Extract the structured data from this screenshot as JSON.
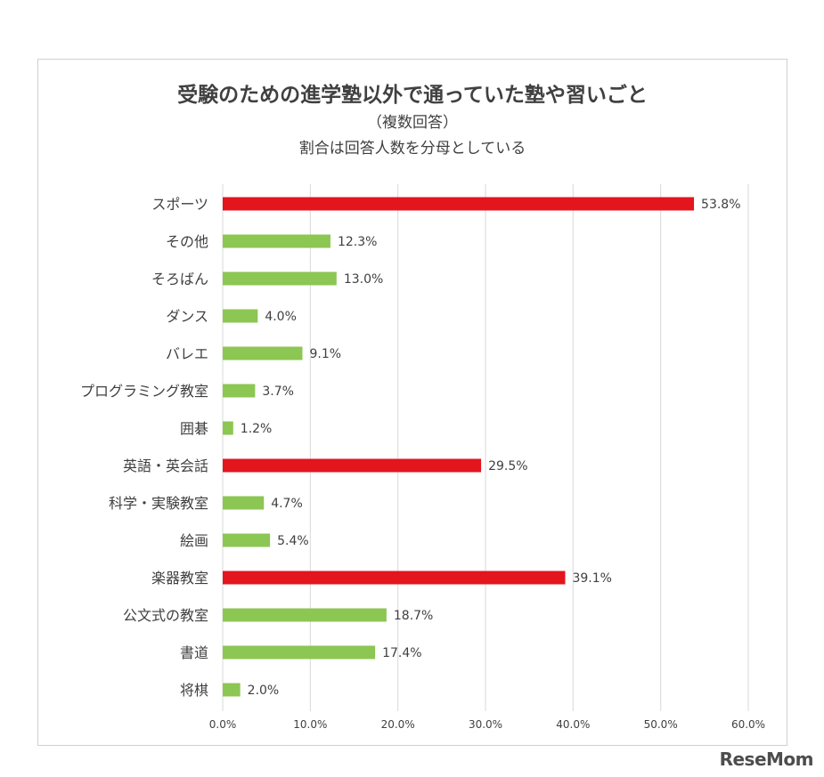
{
  "chart_data": {
    "type": "bar",
    "orientation": "horizontal",
    "title": "受験のための進学塾以外で通っていた塾や習いごと",
    "subtitle": "（複数回答）",
    "subtitle2": "割合は回答人数を分母としている",
    "categories": [
      "スポーツ",
      "その他",
      "そろばん",
      "ダンス",
      "バレエ",
      "プログラミング教室",
      "囲碁",
      "英語・英会話",
      "科学・実験教室",
      "絵画",
      "楽器教室",
      "公文式の教室",
      "書道",
      "将棋"
    ],
    "values": [
      53.8,
      12.3,
      13.0,
      4.0,
      9.1,
      3.7,
      1.2,
      29.5,
      4.7,
      5.4,
      39.1,
      18.7,
      17.4,
      2.0
    ],
    "value_labels": [
      "53.8%",
      "12.3%",
      "13.0%",
      "4.0%",
      "9.1%",
      "3.7%",
      "1.2%",
      "29.5%",
      "4.7%",
      "5.4%",
      "39.1%",
      "18.7%",
      "17.4%",
      "2.0%"
    ],
    "highlighted": [
      true,
      false,
      false,
      false,
      false,
      false,
      false,
      true,
      false,
      false,
      true,
      false,
      false,
      false
    ],
    "xlim": [
      0,
      60
    ],
    "xticks": [
      0,
      10,
      20,
      30,
      40,
      50,
      60
    ],
    "xtick_labels": [
      "0.0%",
      "10.0%",
      "20.0%",
      "30.0%",
      "40.0%",
      "50.0%",
      "60.0%"
    ],
    "grid": true,
    "legend": "none",
    "colors": {
      "highlight": "#e3151d",
      "normal": "#8cc653",
      "grid": "#d9d9d9"
    }
  },
  "brand": {
    "text": "ReseMom"
  }
}
